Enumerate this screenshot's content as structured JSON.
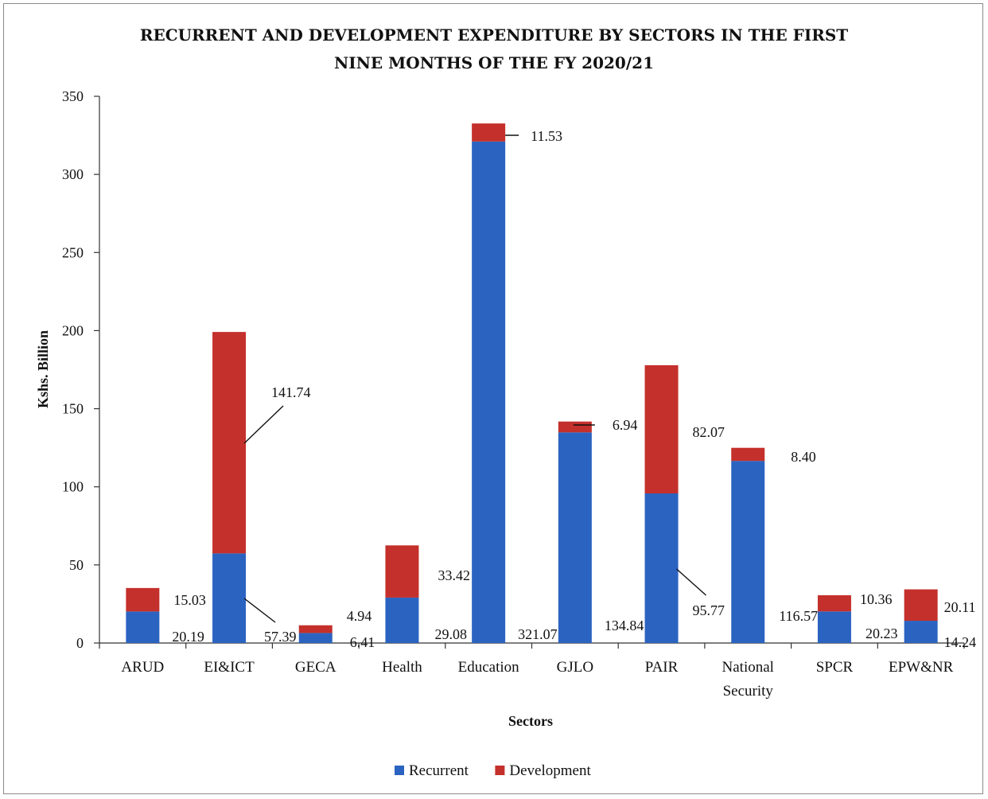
{
  "chart_data": {
    "type": "bar",
    "stacked": true,
    "title_lines": [
      "RECURRENT AND DEVELOPMENT EXPENDITURE BY SECTORS IN THE FIRST",
      "NINE MONTHS OF THE FY 2020/21"
    ],
    "xlabel": "Sectors",
    "ylabel": "Kshs. Billion",
    "ylim": [
      0,
      350
    ],
    "yticks": [
      0,
      50,
      100,
      150,
      200,
      250,
      300,
      350
    ],
    "grid": false,
    "legend_position": "bottom",
    "categories": [
      [
        "ARUD"
      ],
      [
        "EI&ICT"
      ],
      [
        "GECA"
      ],
      [
        "Health"
      ],
      [
        "Education"
      ],
      [
        "GJLO"
      ],
      [
        "PAIR"
      ],
      [
        "National",
        "Security"
      ],
      [
        "SPCR"
      ],
      [
        "EPW&NR"
      ]
    ],
    "series": [
      {
        "name": "Recurrent",
        "color": "#2b63c1",
        "values": [
          20.19,
          57.39,
          6.41,
          29.08,
          321.07,
          134.84,
          95.77,
          116.57,
          20.23,
          14.24
        ],
        "labels": [
          "20.19",
          "57.39",
          "6.41",
          "29.08",
          "321.07",
          "134.84",
          "95.77",
          "116.57",
          "20.23",
          "14.24"
        ]
      },
      {
        "name": "Development",
        "color": "#c4302b",
        "values": [
          15.03,
          141.74,
          4.94,
          33.42,
          11.53,
          6.94,
          82.07,
          8.4,
          10.36,
          20.11
        ],
        "labels": [
          "15.03",
          "141.74",
          "4.94",
          "33.42",
          "11.53",
          "6.94",
          "82.07",
          "8.40",
          "10.36",
          "20.11"
        ]
      }
    ]
  }
}
